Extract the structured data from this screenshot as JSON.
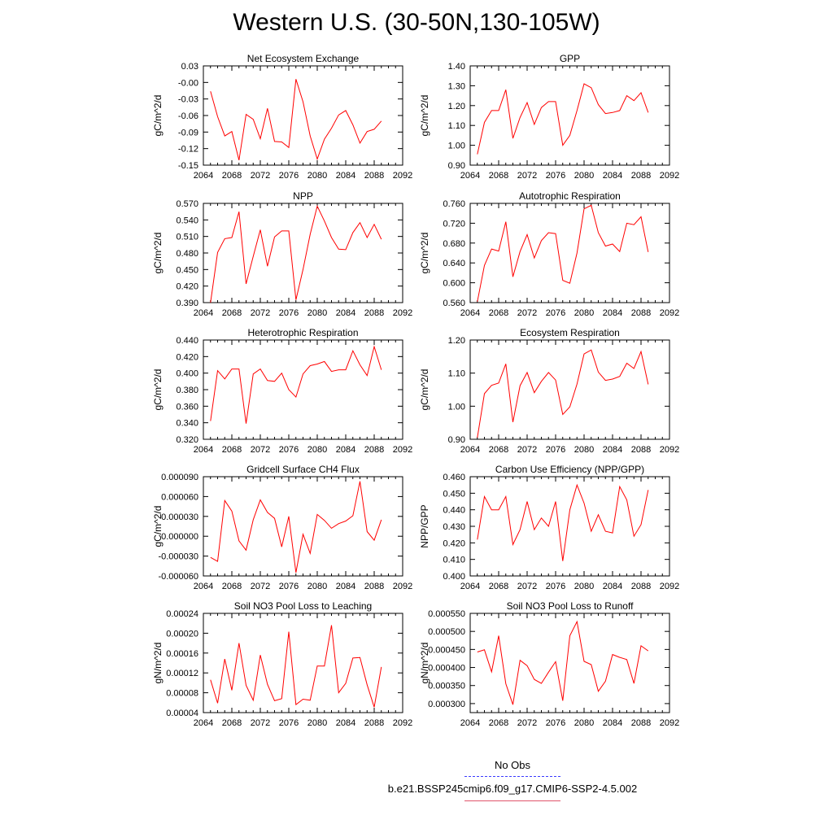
{
  "title": "Western U.S. (30-50N,130-105W)",
  "line_color": "#ff0000",
  "legend": {
    "obs_label": "No Obs",
    "obs_color": "#3a3aff",
    "model_label": "b.e21.BSSP245cmip6.f09_g17.CMIP6-SSP2-4.5.002",
    "model_color": "#e0556a"
  },
  "chart_data": [
    {
      "type": "line",
      "title": "Net Ecosystem Exchange",
      "ylabel": "gC/m^2/d",
      "xlim": [
        2064,
        2092
      ],
      "xticks": [
        "2064",
        "2068",
        "2072",
        "2076",
        "2080",
        "2084",
        "2088",
        "2092"
      ],
      "ylim": [
        -0.15,
        0.03
      ],
      "yticks": [
        "-0.15",
        "-0.12",
        "-0.09",
        "-0.06",
        "-0.03",
        "-0.00",
        "0.03"
      ],
      "x": [
        2065,
        2066,
        2067,
        2068,
        2069,
        2070,
        2071,
        2072,
        2073,
        2074,
        2075,
        2076,
        2077,
        2078,
        2079,
        2080,
        2081,
        2082,
        2083,
        2084,
        2085,
        2086,
        2087,
        2088,
        2089
      ],
      "y": [
        -0.016,
        -0.062,
        -0.097,
        -0.089,
        -0.141,
        -0.058,
        -0.067,
        -0.102,
        -0.047,
        -0.107,
        -0.108,
        -0.118,
        0.006,
        -0.035,
        -0.097,
        -0.139,
        -0.103,
        -0.083,
        -0.059,
        -0.051,
        -0.077,
        -0.11,
        -0.089,
        -0.085,
        -0.07
      ]
    },
    {
      "type": "line",
      "title": "GPP",
      "ylabel": "gC/m^2/d",
      "xlim": [
        2064,
        2092
      ],
      "xticks": [
        "2064",
        "2068",
        "2072",
        "2076",
        "2080",
        "2084",
        "2088",
        "2092"
      ],
      "ylim": [
        0.9,
        1.4
      ],
      "yticks": [
        "0.90",
        "1.00",
        "1.10",
        "1.20",
        "1.30",
        "1.40"
      ],
      "x": [
        2065,
        2066,
        2067,
        2068,
        2069,
        2070,
        2071,
        2072,
        2073,
        2074,
        2075,
        2076,
        2077,
        2078,
        2079,
        2080,
        2081,
        2082,
        2083,
        2084,
        2085,
        2086,
        2087,
        2088,
        2089
      ],
      "y": [
        0.955,
        1.115,
        1.175,
        1.175,
        1.28,
        1.035,
        1.14,
        1.215,
        1.105,
        1.19,
        1.22,
        1.22,
        1.0,
        1.05,
        1.175,
        1.31,
        1.29,
        1.205,
        1.16,
        1.165,
        1.175,
        1.25,
        1.225,
        1.265,
        1.165
      ]
    },
    {
      "type": "line",
      "title": "NPP",
      "ylabel": "gC/m^2/d",
      "xlim": [
        2064,
        2092
      ],
      "xticks": [
        "2064",
        "2068",
        "2072",
        "2076",
        "2080",
        "2084",
        "2088",
        "2092"
      ],
      "ylim": [
        0.39,
        0.57
      ],
      "yticks": [
        "0.390",
        "0.420",
        "0.450",
        "0.480",
        "0.510",
        "0.540",
        "0.570"
      ],
      "x": [
        2065,
        2066,
        2067,
        2068,
        2069,
        2070,
        2071,
        2072,
        2073,
        2074,
        2075,
        2076,
        2077,
        2078,
        2079,
        2080,
        2081,
        2082,
        2083,
        2084,
        2085,
        2086,
        2087,
        2088,
        2089
      ],
      "y": [
        0.39,
        0.481,
        0.506,
        0.508,
        0.555,
        0.424,
        0.474,
        0.522,
        0.456,
        0.509,
        0.52,
        0.52,
        0.395,
        0.45,
        0.514,
        0.565,
        0.538,
        0.508,
        0.487,
        0.486,
        0.517,
        0.535,
        0.508,
        0.532,
        0.505
      ]
    },
    {
      "type": "line",
      "title": "Autotrophic Respiration",
      "ylabel": "gC/m^2/d",
      "xlim": [
        2064,
        2092
      ],
      "xticks": [
        "2064",
        "2068",
        "2072",
        "2076",
        "2080",
        "2084",
        "2088",
        "2092"
      ],
      "ylim": [
        0.56,
        0.76
      ],
      "yticks": [
        "0.560",
        "0.600",
        "0.640",
        "0.680",
        "0.720",
        "0.760"
      ],
      "x": [
        2065,
        2066,
        2067,
        2068,
        2069,
        2070,
        2071,
        2072,
        2073,
        2074,
        2075,
        2076,
        2077,
        2078,
        2079,
        2080,
        2081,
        2082,
        2083,
        2084,
        2085,
        2086,
        2087,
        2088,
        2089
      ],
      "y": [
        0.562,
        0.635,
        0.668,
        0.664,
        0.723,
        0.612,
        0.663,
        0.697,
        0.65,
        0.685,
        0.701,
        0.699,
        0.605,
        0.599,
        0.66,
        0.749,
        0.756,
        0.701,
        0.674,
        0.678,
        0.663,
        0.72,
        0.717,
        0.733,
        0.662
      ]
    },
    {
      "type": "line",
      "title": "Heterotrophic Respiration",
      "ylabel": "gC/m^2/d",
      "xlim": [
        2064,
        2092
      ],
      "xticks": [
        "2064",
        "2068",
        "2072",
        "2076",
        "2080",
        "2084",
        "2088",
        "2092"
      ],
      "ylim": [
        0.32,
        0.44
      ],
      "yticks": [
        "0.320",
        "0.340",
        "0.360",
        "0.380",
        "0.400",
        "0.420",
        "0.440"
      ],
      "x": [
        2065,
        2066,
        2067,
        2068,
        2069,
        2070,
        2071,
        2072,
        2073,
        2074,
        2075,
        2076,
        2077,
        2078,
        2079,
        2080,
        2081,
        2082,
        2083,
        2084,
        2085,
        2086,
        2087,
        2088,
        2089
      ],
      "y": [
        0.342,
        0.403,
        0.393,
        0.405,
        0.405,
        0.339,
        0.399,
        0.405,
        0.391,
        0.39,
        0.4,
        0.38,
        0.371,
        0.399,
        0.409,
        0.411,
        0.414,
        0.402,
        0.404,
        0.404,
        0.427,
        0.41,
        0.397,
        0.432,
        0.404
      ]
    },
    {
      "type": "line",
      "title": "Ecosystem Respiration",
      "ylabel": "gC/m^2/d",
      "xlim": [
        2064,
        2092
      ],
      "xticks": [
        "2064",
        "2068",
        "2072",
        "2076",
        "2080",
        "2084",
        "2088",
        "2092"
      ],
      "ylim": [
        0.9,
        1.2
      ],
      "yticks": [
        "0.90",
        "1.00",
        "1.10",
        "1.20"
      ],
      "x": [
        2065,
        2066,
        2067,
        2068,
        2069,
        2070,
        2071,
        2072,
        2073,
        2074,
        2075,
        2076,
        2077,
        2078,
        2079,
        2080,
        2081,
        2082,
        2083,
        2084,
        2085,
        2086,
        2087,
        2088,
        2089
      ],
      "y": [
        0.905,
        1.038,
        1.063,
        1.07,
        1.128,
        0.952,
        1.062,
        1.102,
        1.041,
        1.075,
        1.102,
        1.079,
        0.975,
        0.998,
        1.067,
        1.158,
        1.17,
        1.103,
        1.078,
        1.082,
        1.09,
        1.13,
        1.114,
        1.165,
        1.066
      ]
    },
    {
      "type": "line",
      "title": "Gridcell Surface CH4 Flux",
      "ylabel": "gC/m^2/d",
      "xlim": [
        2064,
        2092
      ],
      "xticks": [
        "2064",
        "2068",
        "2072",
        "2076",
        "2080",
        "2084",
        "2088",
        "2092"
      ],
      "ylim": [
        -6e-05,
        9e-05
      ],
      "yticks": [
        "-0.000060",
        "-0.000030",
        "0.000000",
        "0.000030",
        "0.000060",
        "0.000090"
      ],
      "x": [
        2065,
        2066,
        2067,
        2068,
        2069,
        2070,
        2071,
        2072,
        2073,
        2074,
        2075,
        2076,
        2077,
        2078,
        2079,
        2080,
        2081,
        2082,
        2083,
        2084,
        2085,
        2086,
        2087,
        2088,
        2089
      ],
      "y": [
        -3.2e-05,
        -3.8e-05,
        5.4e-05,
        3.8e-05,
        -7e-06,
        -2.1e-05,
        2.5e-05,
        5.5e-05,
        3.6e-05,
        2.7e-05,
        -1.6e-05,
        3e-05,
        -5.5e-05,
        3e-06,
        -2.6e-05,
        3.3e-05,
        2.4e-05,
        1.2e-05,
        1.9e-05,
        2.3e-05,
        3.1e-05,
        8.3e-05,
        7e-06,
        -6e-06,
        2.5e-05
      ]
    },
    {
      "type": "line",
      "title": "Carbon Use Efficiency (NPP/GPP)",
      "ylabel": "NPP/GPP",
      "xlim": [
        2064,
        2092
      ],
      "xticks": [
        "2064",
        "2068",
        "2072",
        "2076",
        "2080",
        "2084",
        "2088",
        "2092"
      ],
      "ylim": [
        0.4,
        0.46
      ],
      "yticks": [
        "0.400",
        "0.410",
        "0.420",
        "0.430",
        "0.440",
        "0.450",
        "0.460"
      ],
      "x": [
        2065,
        2066,
        2067,
        2068,
        2069,
        2070,
        2071,
        2072,
        2073,
        2074,
        2075,
        2076,
        2077,
        2078,
        2079,
        2080,
        2081,
        2082,
        2083,
        2084,
        2085,
        2086,
        2087,
        2088,
        2089
      ],
      "y": [
        0.422,
        0.448,
        0.44,
        0.44,
        0.448,
        0.419,
        0.428,
        0.445,
        0.428,
        0.435,
        0.43,
        0.445,
        0.409,
        0.44,
        0.455,
        0.444,
        0.427,
        0.437,
        0.427,
        0.426,
        0.454,
        0.446,
        0.424,
        0.431,
        0.452
      ]
    },
    {
      "type": "line",
      "title": "Soil NO3 Pool Loss to Leaching",
      "ylabel": "gN/m^2/d",
      "xlim": [
        2064,
        2092
      ],
      "xticks": [
        "2064",
        "2068",
        "2072",
        "2076",
        "2080",
        "2084",
        "2088",
        "2092"
      ],
      "ylim": [
        4e-05,
        0.00024
      ],
      "yticks": [
        "0.00004",
        "0.00008",
        "0.00012",
        "0.00016",
        "0.00020",
        "0.00024"
      ],
      "x": [
        2065,
        2066,
        2067,
        2068,
        2069,
        2070,
        2071,
        2072,
        2073,
        2074,
        2075,
        2076,
        2077,
        2078,
        2079,
        2080,
        2081,
        2082,
        2083,
        2084,
        2085,
        2086,
        2087,
        2088,
        2089
      ],
      "y": [
        0.000106,
        5.9e-05,
        0.000148,
        8.5e-05,
        0.00018,
        9.5e-05,
        6.5e-05,
        0.000156,
        9.7e-05,
        6.4e-05,
        6.8e-05,
        0.000203,
        5.6e-05,
        6.7e-05,
        6.5e-05,
        0.000134,
        0.000134,
        0.000216,
        8e-05,
        9.9e-05,
        0.00015,
        0.000151,
        9.6e-05,
        5.1e-05,
        0.000132
      ]
    },
    {
      "type": "line",
      "title": "Soil NO3 Pool Loss to Runoff",
      "ylabel": "gN/m^2/d",
      "xlim": [
        2064,
        2092
      ],
      "xticks": [
        "2064",
        "2068",
        "2072",
        "2076",
        "2080",
        "2084",
        "2088",
        "2092"
      ],
      "ylim": [
        0.000275,
        0.00055
      ],
      "yticks": [
        "0.000300",
        "0.000350",
        "0.000400",
        "0.000450",
        "0.000500",
        "0.000550"
      ],
      "x": [
        2065,
        2066,
        2067,
        2068,
        2069,
        2070,
        2071,
        2072,
        2073,
        2074,
        2075,
        2076,
        2077,
        2078,
        2079,
        2080,
        2081,
        2082,
        2083,
        2084,
        2085,
        2086,
        2087,
        2088,
        2089
      ],
      "y": [
        0.000443,
        0.000449,
        0.000388,
        0.000488,
        0.000355,
        0.000297,
        0.00042,
        0.000405,
        0.000367,
        0.000356,
        0.000387,
        0.000416,
        0.000308,
        0.000488,
        0.000527,
        0.000417,
        0.000408,
        0.000334,
        0.000362,
        0.000436,
        0.000428,
        0.000422,
        0.000356,
        0.00046,
        0.000446
      ]
    }
  ]
}
